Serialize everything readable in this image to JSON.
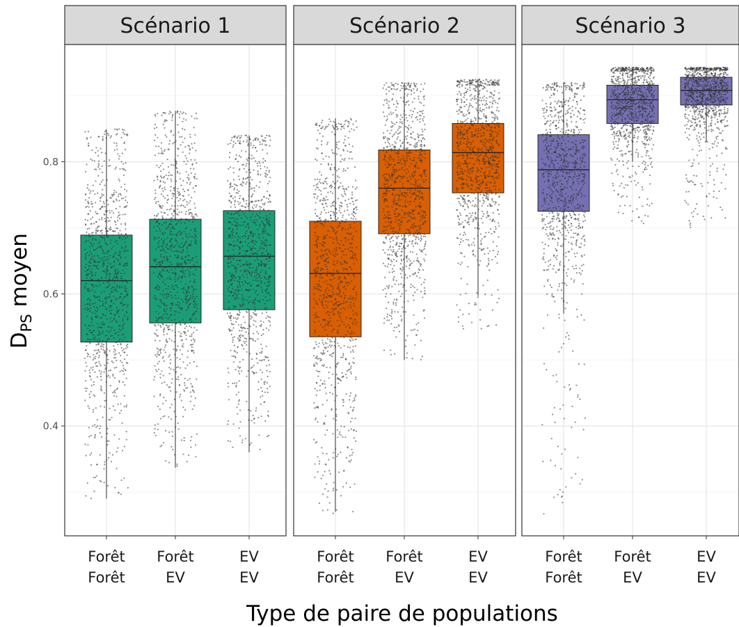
{
  "chart_data": {
    "type": "box",
    "facet_label": "Scénario",
    "xlabel": "Type de paire de populations",
    "ylabel": {
      "main": "D",
      "subscript": "PS",
      "rest": " moyen"
    },
    "y_ticks": [
      0.4,
      0.6,
      0.8
    ],
    "y_tick_labels": [
      "0.4",
      "0.6",
      "0.8"
    ],
    "ylim": [
      0.23,
      0.97
    ],
    "grid": true,
    "categories": [
      {
        "line1": "Forêt",
        "line2": "Forêt"
      },
      {
        "line1": "Forêt",
        "line2": "EV"
      },
      {
        "line1": "EV",
        "line2": "EV"
      }
    ],
    "panels": [
      {
        "title": "Scénario 1",
        "color": "#1b9e77",
        "boxes": [
          {
            "category": "Forêt-Forêt",
            "min": 0.29,
            "q1": 0.527,
            "median": 0.62,
            "q3": 0.689,
            "max": 0.848,
            "points_min": 0.29,
            "points_max": 0.85
          },
          {
            "category": "Forêt-EV",
            "min": 0.337,
            "q1": 0.556,
            "median": 0.641,
            "q3": 0.713,
            "max": 0.877,
            "points_min": 0.337,
            "points_max": 0.877
          },
          {
            "category": "EV-EV",
            "min": 0.36,
            "q1": 0.576,
            "median": 0.657,
            "q3": 0.726,
            "max": 0.84,
            "points_min": 0.36,
            "points_max": 0.84
          }
        ]
      },
      {
        "title": "Scénario 2",
        "color": "#d95f02",
        "boxes": [
          {
            "category": "Forêt-Forêt",
            "min": 0.27,
            "q1": 0.535,
            "median": 0.631,
            "q3": 0.71,
            "max": 0.866,
            "points_min": 0.266,
            "points_max": 0.866
          },
          {
            "category": "Forêt-EV",
            "min": 0.5,
            "q1": 0.691,
            "median": 0.76,
            "q3": 0.818,
            "max": 0.92,
            "points_min": 0.5,
            "points_max": 0.92
          },
          {
            "category": "EV-EV",
            "min": 0.597,
            "q1": 0.753,
            "median": 0.814,
            "q3": 0.858,
            "max": 0.925,
            "points_min": 0.54,
            "points_max": 0.925
          }
        ]
      },
      {
        "title": "Scénario 3",
        "color": "#7570b3",
        "boxes": [
          {
            "category": "Forêt-Forêt",
            "min": 0.57,
            "q1": 0.725,
            "median": 0.788,
            "q3": 0.841,
            "max": 0.92,
            "points_min": 0.264,
            "points_max": 0.92
          },
          {
            "category": "Forêt-EV",
            "min": 0.8,
            "q1": 0.858,
            "median": 0.894,
            "q3": 0.916,
            "max": 0.943,
            "points_min": 0.705,
            "points_max": 0.943
          },
          {
            "category": "EV-EV",
            "min": 0.83,
            "q1": 0.886,
            "median": 0.908,
            "q3": 0.928,
            "max": 0.943,
            "points_min": 0.7,
            "points_max": 0.943
          }
        ]
      }
    ],
    "colors": {
      "strip_fill": "#d9d9d9",
      "panel_border": "#333333",
      "grid_major": "#e6e6e6",
      "grid_minor": "#f2f2f2",
      "points": "#333333"
    }
  }
}
